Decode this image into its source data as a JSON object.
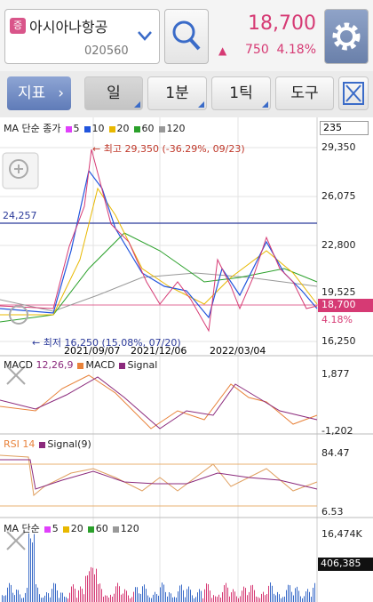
{
  "header": {
    "badge": "증",
    "name": "아시아나항공",
    "code": "020560",
    "price": "18,700",
    "arrow": "▲",
    "change": "750",
    "rate": "4.18%"
  },
  "toolbar": {
    "indicator": "지표",
    "tabs": [
      "일",
      "1분",
      "1틱",
      "도구"
    ]
  },
  "main_chart": {
    "legend_title": "MA 단순 종가",
    "ma": [
      "5",
      "10",
      "20",
      "60",
      "120"
    ],
    "count": "235",
    "high": "최고 29,350 (-36.29%, 09/23)",
    "low": "최저 16,250 (15.08%, 07/20)",
    "y_labels": [
      "29,350",
      "26,075",
      "22,800",
      "19,525",
      "16,250"
    ],
    "price_tag": "18,700",
    "rate_tag": "4.18%",
    "line_label": "24,257",
    "x_labels": [
      "2021/09/07",
      "2021/12/06",
      "2022/03/04"
    ]
  },
  "macd": {
    "title": "MACD",
    "params": "12,26,9",
    "series": [
      "MACD",
      "Signal"
    ],
    "y_labels": [
      "1,877",
      "-1,202"
    ]
  },
  "rsi": {
    "title": "RSI 14",
    "series": [
      "Signal(9)"
    ],
    "y_labels": [
      "84.47",
      "6.53"
    ]
  },
  "volume": {
    "title": "MA 단순",
    "ma": [
      "5",
      "20",
      "60",
      "120"
    ],
    "y_label": "16,474K",
    "tag": "406,385"
  }
}
